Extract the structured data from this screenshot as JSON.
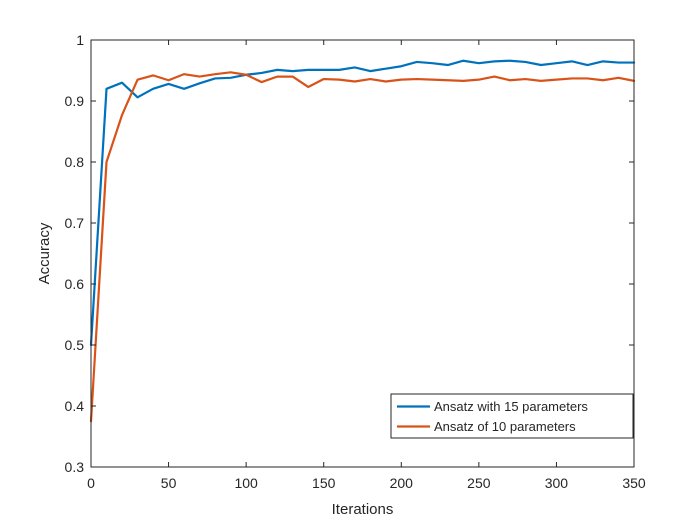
{
  "chart_data": {
    "type": "line",
    "title": "",
    "xlabel": "Iterations",
    "ylabel": "Accuracy",
    "xlim": [
      0,
      350
    ],
    "ylim": [
      0.3,
      1
    ],
    "xticks": [
      0,
      50,
      100,
      150,
      200,
      250,
      300,
      350
    ],
    "yticks": [
      0.3,
      0.4,
      0.5,
      0.6,
      0.7,
      0.8,
      0.9,
      1
    ],
    "xtick_labels": [
      "0",
      "50",
      "100",
      "150",
      "200",
      "250",
      "300",
      "350"
    ],
    "ytick_labels": [
      "0.3",
      "0.4",
      "0.5",
      "0.6",
      "0.7",
      "0.8",
      "0.9",
      "1"
    ],
    "grid": false,
    "legend_position": "bottom-right",
    "x": [
      0,
      10,
      20,
      30,
      40,
      50,
      60,
      70,
      80,
      90,
      100,
      110,
      120,
      130,
      140,
      150,
      160,
      170,
      180,
      190,
      200,
      210,
      220,
      230,
      240,
      250,
      260,
      270,
      280,
      290,
      300,
      310,
      320,
      330,
      340,
      350
    ],
    "series": [
      {
        "name": "Ansatz with 15 parameters",
        "color": "#0072BD",
        "values": [
          0.5,
          0.92,
          0.93,
          0.906,
          0.92,
          0.928,
          0.92,
          0.929,
          0.937,
          0.938,
          0.943,
          0.946,
          0.951,
          0.949,
          0.951,
          0.951,
          0.951,
          0.955,
          0.949,
          0.953,
          0.957,
          0.964,
          0.962,
          0.959,
          0.966,
          0.962,
          0.965,
          0.966,
          0.964,
          0.959,
          0.962,
          0.965,
          0.959,
          0.965,
          0.963,
          0.963
        ]
      },
      {
        "name": "Ansatz of 10 parameters",
        "color": "#D95319",
        "values": [
          0.375,
          0.8,
          0.877,
          0.935,
          0.942,
          0.934,
          0.944,
          0.94,
          0.944,
          0.947,
          0.943,
          0.931,
          0.94,
          0.94,
          0.923,
          0.936,
          0.935,
          0.932,
          0.936,
          0.932,
          0.935,
          0.936,
          0.935,
          0.934,
          0.933,
          0.935,
          0.94,
          0.934,
          0.936,
          0.933,
          0.935,
          0.937,
          0.937,
          0.934,
          0.938,
          0.933
        ]
      }
    ]
  }
}
